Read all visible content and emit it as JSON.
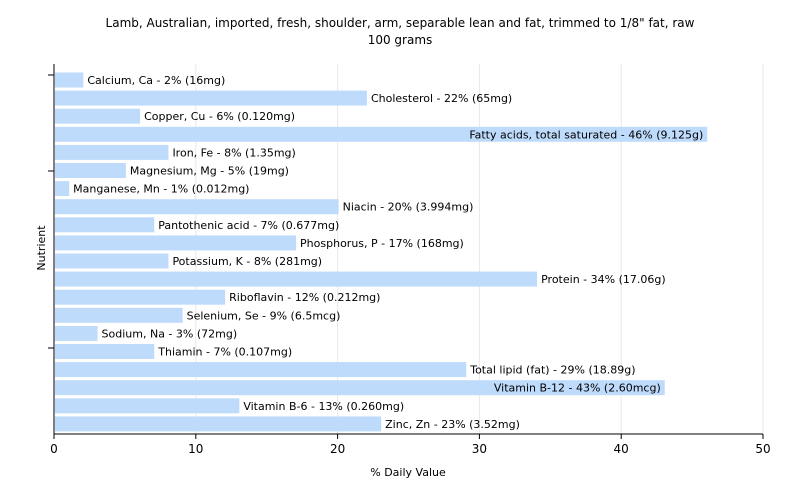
{
  "colors": {
    "bar": "#bfdbfc",
    "grid": "#e8e8e8",
    "axis": "#000000",
    "background": "#ffffff"
  },
  "chart_data": {
    "type": "bar",
    "orientation": "horizontal",
    "title": "Lamb, Australian, imported, fresh, shoulder, arm, separable lean and fat, trimmed to 1/8\" fat, raw",
    "subtitle": "100 grams",
    "xlabel": "% Daily Value",
    "ylabel": "Nutrient",
    "xlim": [
      0,
      50
    ],
    "xticks": [
      0,
      10,
      20,
      30,
      40,
      50
    ],
    "grid": true,
    "categories": [
      "Calcium, Ca",
      "Cholesterol",
      "Copper, Cu",
      "Fatty acids, total saturated",
      "Iron, Fe",
      "Magnesium, Mg",
      "Manganese, Mn",
      "Niacin",
      "Pantothenic acid",
      "Phosphorus, P",
      "Potassium, K",
      "Protein",
      "Riboflavin",
      "Selenium, Se",
      "Sodium, Na",
      "Thiamin",
      "Total lipid (fat)",
      "Vitamin B-12",
      "Vitamin B-6",
      "Zinc, Zn"
    ],
    "values": [
      2,
      22,
      6,
      46,
      8,
      5,
      1,
      20,
      7,
      17,
      8,
      34,
      12,
      9,
      3,
      7,
      29,
      43,
      13,
      23
    ],
    "labels": [
      "Calcium, Ca - 2% (16mg)",
      "Cholesterol - 22% (65mg)",
      "Copper, Cu - 6% (0.120mg)",
      "Fatty acids, total saturated - 46% (9.125g)",
      "Iron, Fe - 8% (1.35mg)",
      "Magnesium, Mg - 5% (19mg)",
      "Manganese, Mn - 1% (0.012mg)",
      "Niacin - 20% (3.994mg)",
      "Pantothenic acid - 7% (0.677mg)",
      "Phosphorus, P - 17% (168mg)",
      "Potassium, K - 8% (281mg)",
      "Protein - 34% (17.06g)",
      "Riboflavin - 12% (0.212mg)",
      "Selenium, Se - 9% (6.5mcg)",
      "Sodium, Na - 3% (72mg)",
      "Thiamin - 7% (0.107mg)",
      "Total lipid (fat) - 29% (18.89g)",
      "Vitamin B-12 - 43% (2.60mcg)",
      "Vitamin B-6 - 13% (0.260mg)",
      "Zinc, Zn - 23% (3.52mg)"
    ]
  }
}
